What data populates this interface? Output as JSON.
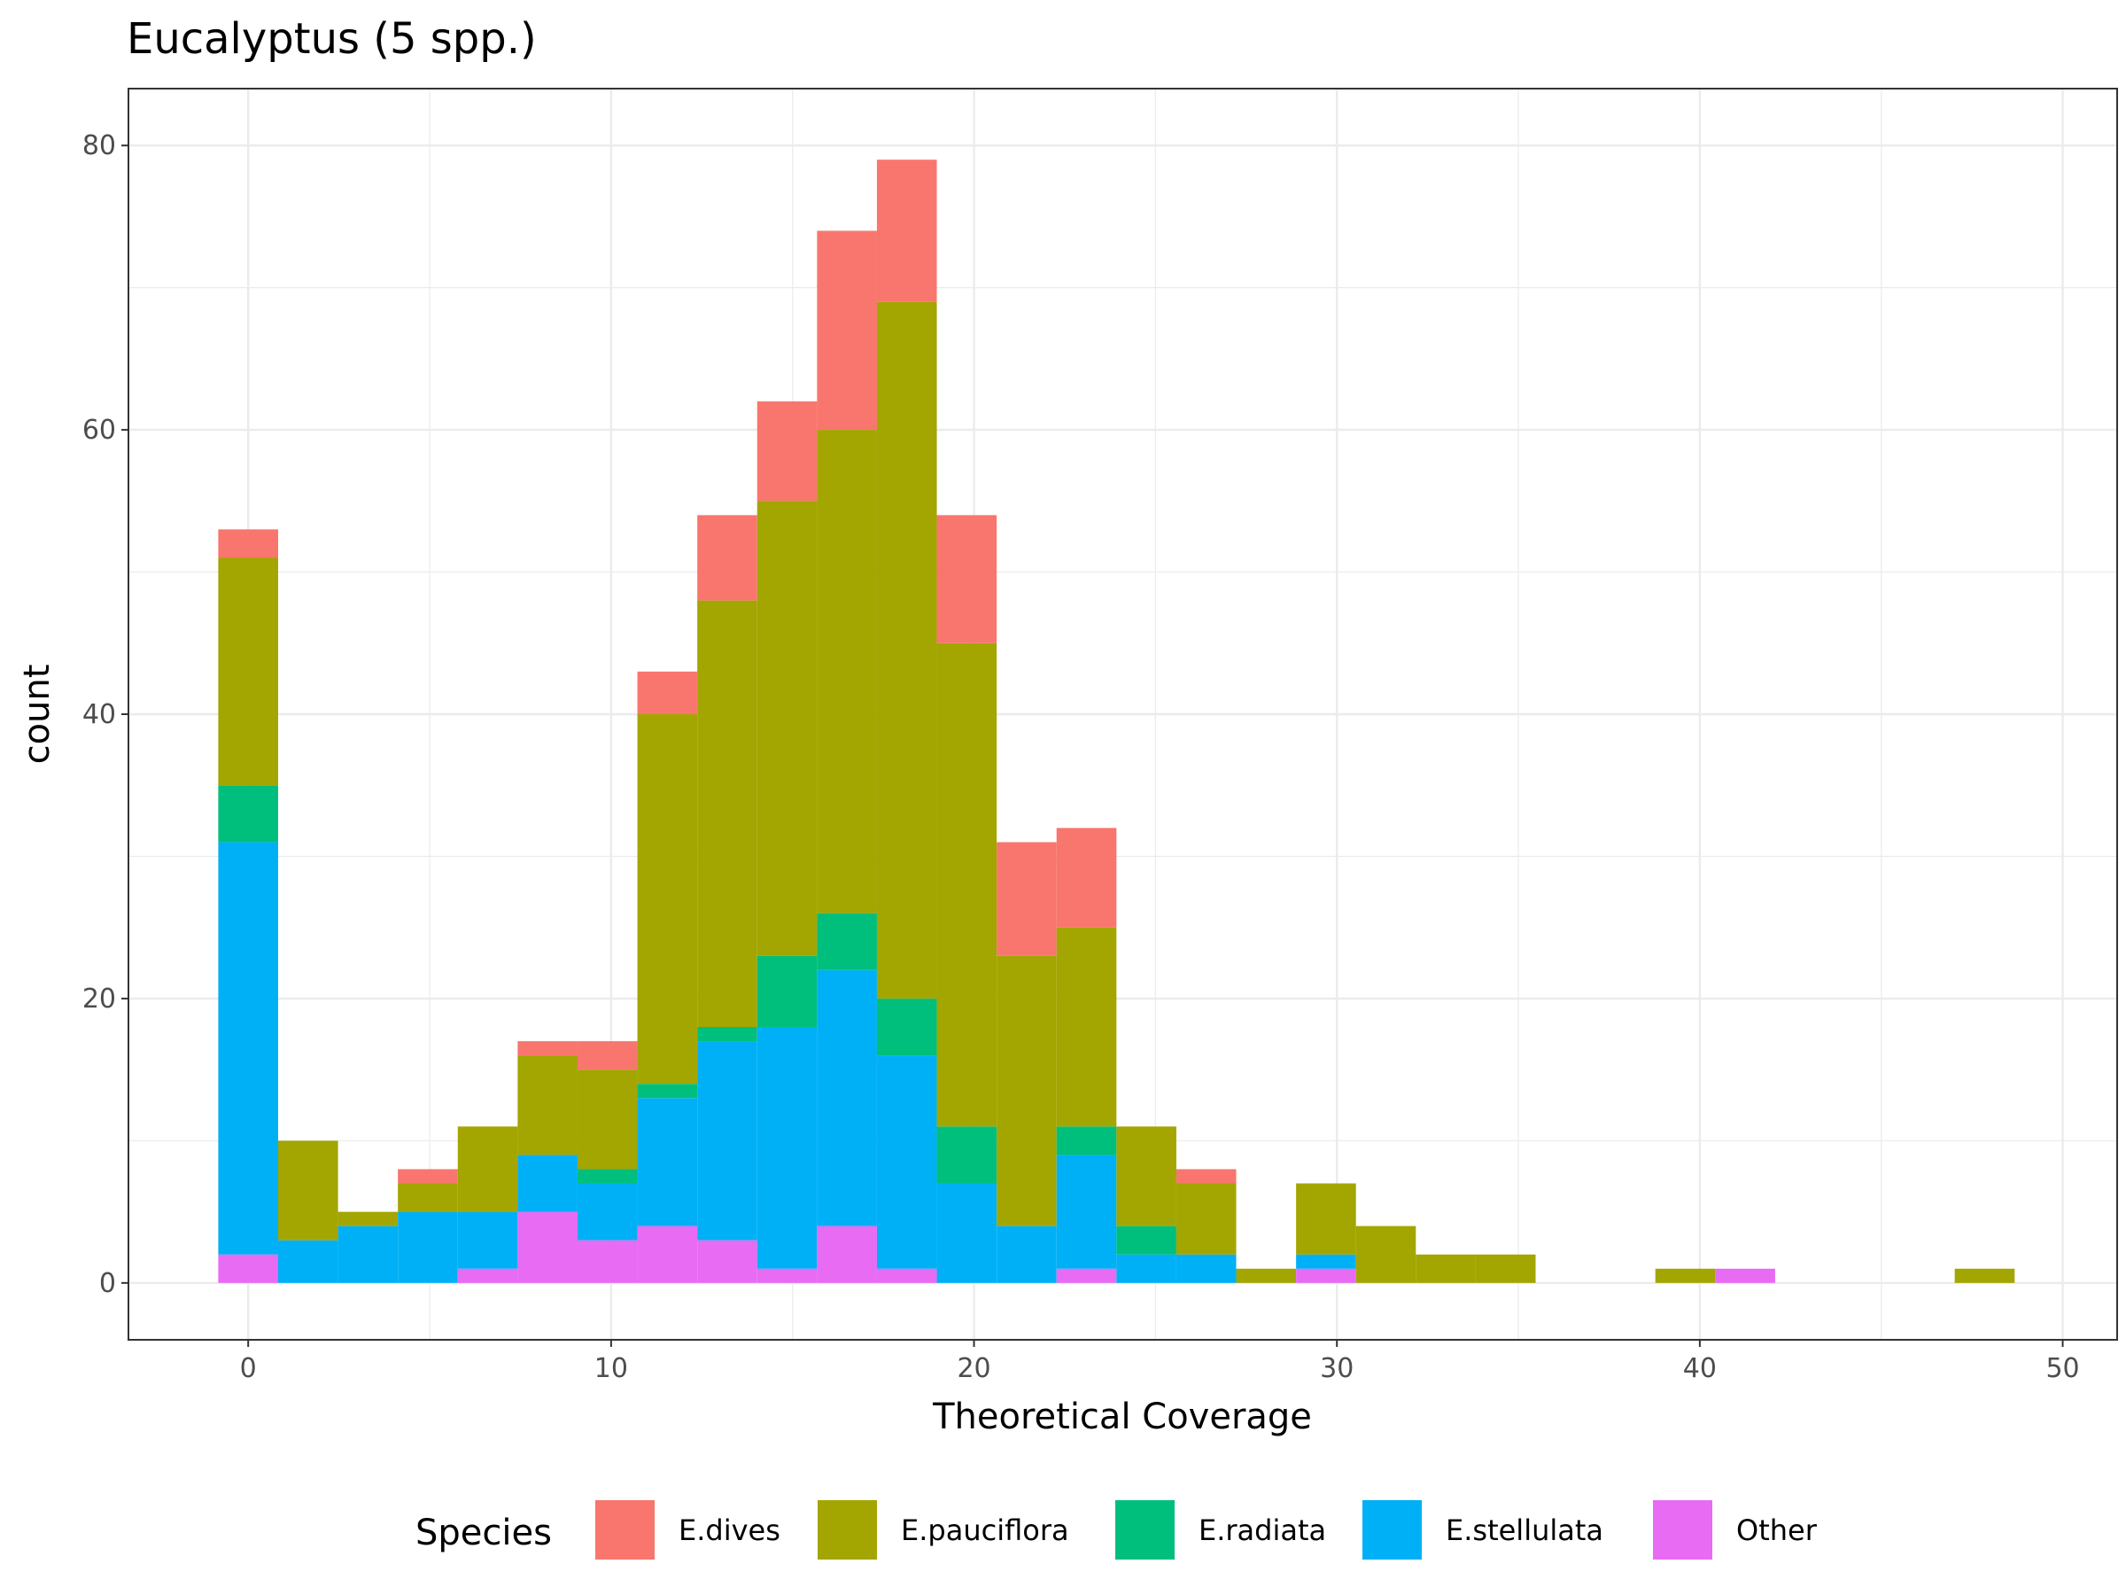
{
  "chart_data": {
    "type": "bar",
    "title": "Eucalyptus (5 spp.)",
    "xlabel": "Theoretical Coverage",
    "ylabel": "count",
    "xlim": [
      -3.3,
      51.5
    ],
    "ylim": [
      -4,
      84
    ],
    "x_ticks": [
      0,
      10,
      20,
      30,
      40,
      50
    ],
    "x_tick_labels": [
      "0",
      "10",
      "20",
      "30",
      "40",
      "50"
    ],
    "y_ticks": [
      0,
      20,
      40,
      60,
      80
    ],
    "y_tick_labels": [
      "0",
      "20",
      "40",
      "60",
      "80"
    ],
    "grid": true,
    "legend_position": "bottom",
    "legend_title": "Species",
    "stacked": true,
    "bin_width": 1.65,
    "bins": [
      0,
      1.65,
      3.3,
      4.95,
      6.6,
      8.25,
      9.9,
      11.55,
      13.2,
      14.85,
      16.5,
      18.15,
      19.8,
      21.45,
      23.1,
      24.75,
      26.4,
      28.05,
      29.7,
      31.35,
      33.0,
      34.65,
      36.3,
      37.95,
      39.6,
      41.25,
      42.9,
      44.55,
      46.2,
      47.85
    ],
    "series": [
      {
        "name": "Other",
        "color": "#E76BF3",
        "values": [
          2,
          0,
          0,
          0,
          1,
          5,
          3,
          4,
          3,
          1,
          4,
          1,
          0,
          0,
          1,
          0,
          0,
          0,
          1,
          0,
          0,
          0,
          0,
          0,
          0,
          1,
          0,
          0,
          0,
          0
        ]
      },
      {
        "name": "E.stellulata",
        "color": "#00B0F6",
        "values": [
          29,
          3,
          4,
          5,
          4,
          4,
          4,
          9,
          14,
          17,
          18,
          15,
          7,
          4,
          8,
          2,
          2,
          0,
          1,
          0,
          0,
          0,
          0,
          0,
          0,
          0,
          0,
          0,
          0,
          0
        ]
      },
      {
        "name": "E.radiata",
        "color": "#00BF7D",
        "values": [
          4,
          0,
          0,
          0,
          0,
          0,
          1,
          1,
          1,
          5,
          4,
          4,
          4,
          0,
          2,
          2,
          0,
          0,
          0,
          0,
          0,
          0,
          0,
          0,
          0,
          0,
          0,
          0,
          0,
          0
        ]
      },
      {
        "name": "E.pauciflora",
        "color": "#A3A500",
        "values": [
          16,
          7,
          1,
          2,
          6,
          7,
          7,
          26,
          30,
          32,
          34,
          49,
          34,
          19,
          14,
          7,
          5,
          1,
          5,
          4,
          2,
          2,
          0,
          0,
          1,
          0,
          0,
          0,
          0,
          1
        ]
      },
      {
        "name": "E.dives",
        "color": "#F8766D",
        "values": [
          2,
          0,
          0,
          1,
          0,
          1,
          2,
          3,
          6,
          7,
          14,
          10,
          9,
          8,
          7,
          0,
          1,
          0,
          0,
          0,
          0,
          0,
          0,
          0,
          0,
          0,
          0,
          0,
          0,
          0
        ]
      }
    ],
    "legend_order": [
      "E.dives",
      "E.pauciflora",
      "E.radiata",
      "E.stellulata",
      "Other"
    ]
  }
}
